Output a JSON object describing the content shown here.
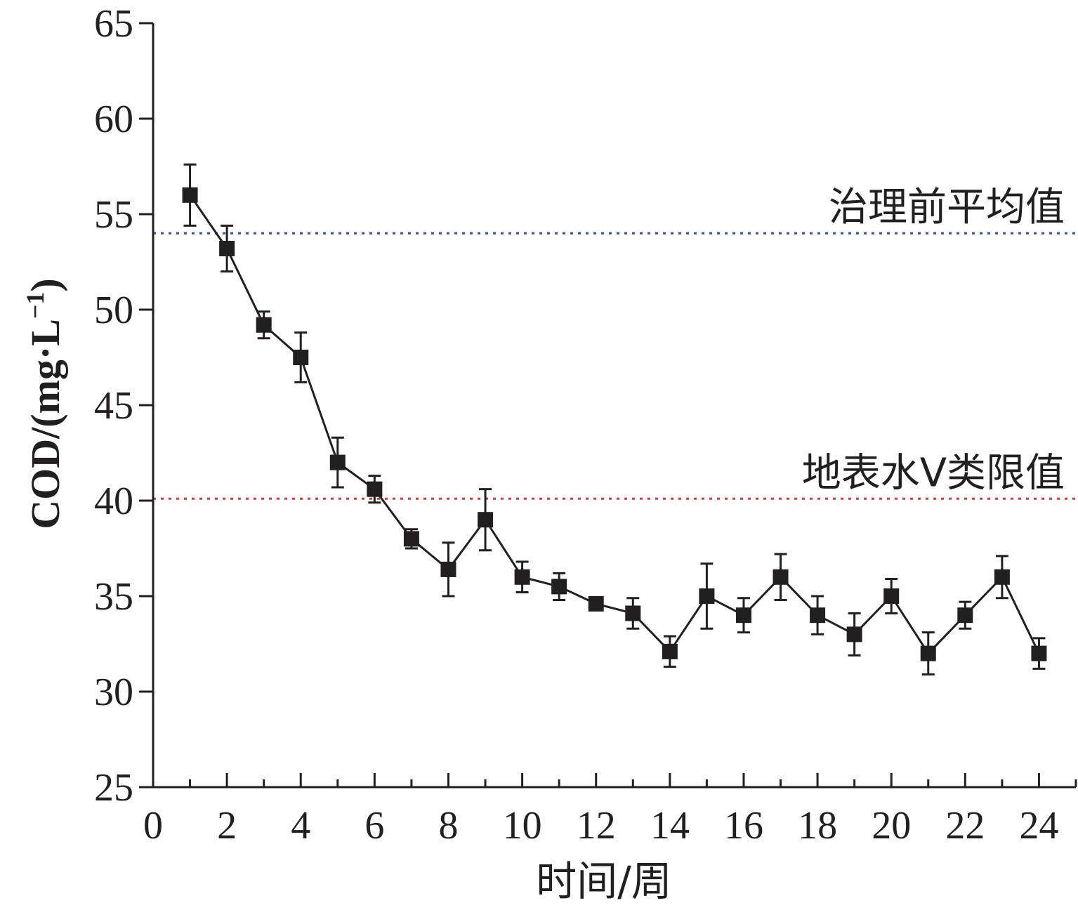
{
  "chart_data": {
    "type": "line",
    "xlabel": "时间/周",
    "ylabel": {
      "main": "COD/(mg·L",
      "sup": "−1",
      "close": ")"
    },
    "xlim": [
      0,
      25
    ],
    "ylim": [
      25,
      65
    ],
    "xticks": [
      0,
      2,
      4,
      6,
      8,
      10,
      12,
      14,
      16,
      18,
      20,
      22,
      24
    ],
    "yticks": [
      25,
      30,
      35,
      40,
      45,
      50,
      55,
      60,
      65
    ],
    "grid": false,
    "series": [
      {
        "x": [
          1,
          2,
          3,
          4,
          5,
          6,
          7,
          8,
          9,
          10,
          11,
          12,
          13,
          14,
          15,
          16,
          17,
          18,
          19,
          20,
          21,
          22,
          23,
          24
        ],
        "y": [
          56.0,
          53.2,
          49.2,
          47.5,
          42.0,
          40.6,
          38.0,
          36.4,
          39.0,
          36.0,
          35.5,
          34.6,
          34.1,
          32.1,
          35.0,
          34.0,
          36.0,
          34.0,
          33.0,
          35.0,
          32.0,
          34.0,
          36.0,
          32.0
        ],
        "error": [
          1.6,
          1.2,
          0.7,
          1.3,
          1.3,
          0.7,
          0.5,
          1.4,
          1.6,
          0.8,
          0.7,
          0.2,
          0.8,
          0.8,
          1.7,
          0.9,
          1.2,
          1.0,
          1.1,
          0.9,
          1.1,
          0.7,
          1.1,
          0.8
        ],
        "color": "#231f20"
      }
    ],
    "reference_lines": [
      {
        "label": "治理前平均值",
        "y": 54,
        "color": "#3a4a9f",
        "style": "dotted"
      },
      {
        "label": "地表水V类限值",
        "y": 40.1,
        "color": "#d33a2c",
        "style": "dotted"
      }
    ]
  }
}
